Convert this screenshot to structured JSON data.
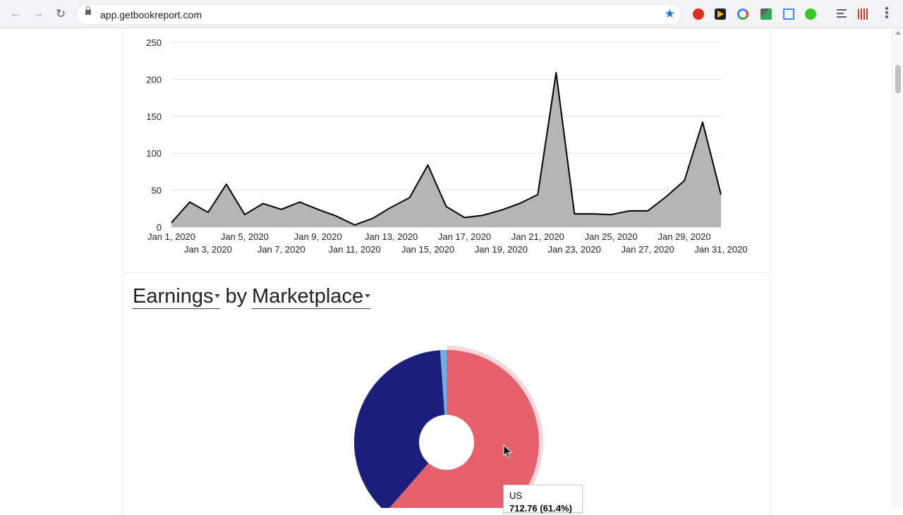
{
  "browser": {
    "url": "app.getbookreport.com",
    "icons": [
      "back-arrow-icon",
      "forward-arrow-icon",
      "reload-icon",
      "lock-icon",
      "bookmark-star-icon",
      "extension-icon",
      "reading-list-icon",
      "kebab-menu-icon"
    ]
  },
  "chart_data": [
    {
      "type": "area",
      "title": "",
      "xlabel": "",
      "ylabel": "",
      "ylim": [
        0,
        250
      ],
      "yticks": [
        0,
        50,
        100,
        150,
        200,
        250
      ],
      "grid": true,
      "colors": {
        "fill": "#b5b5b5",
        "line": "#000000",
        "grid": "#e0e0e0"
      },
      "x": [
        "Jan 1, 2020",
        "Jan 2, 2020",
        "Jan 3, 2020",
        "Jan 4, 2020",
        "Jan 5, 2020",
        "Jan 6, 2020",
        "Jan 7, 2020",
        "Jan 8, 2020",
        "Jan 9, 2020",
        "Jan 10, 2020",
        "Jan 11, 2020",
        "Jan 12, 2020",
        "Jan 13, 2020",
        "Jan 14, 2020",
        "Jan 15, 2020",
        "Jan 16, 2020",
        "Jan 17, 2020",
        "Jan 18, 2020",
        "Jan 19, 2020",
        "Jan 20, 2020",
        "Jan 21, 2020",
        "Jan 22, 2020",
        "Jan 23, 2020",
        "Jan 24, 2020",
        "Jan 25, 2020",
        "Jan 26, 2020",
        "Jan 27, 2020",
        "Jan 28, 2020",
        "Jan 29, 2020",
        "Jan 30, 2020",
        "Jan 31, 2020"
      ],
      "values": [
        6,
        34,
        20,
        58,
        17,
        32,
        24,
        34,
        24,
        15,
        3,
        12,
        27,
        40,
        84,
        28,
        13,
        16,
        23,
        32,
        44,
        209,
        18,
        18,
        17,
        22,
        22,
        41,
        63,
        142,
        44
      ],
      "xtick_labels_row1": [
        "Jan 1, 2020",
        "Jan 5, 2020",
        "Jan 9, 2020",
        "Jan 13, 2020",
        "Jan 17, 2020",
        "Jan 21, 2020",
        "Jan 25, 2020",
        "Jan 29, 2020"
      ],
      "xtick_labels_row2": [
        "Jan 3, 2020",
        "Jan 7, 2020",
        "Jan 11, 2020",
        "Jan 15, 2020",
        "Jan 19, 2020",
        "Jan 23, 2020",
        "Jan 27, 2020",
        "Jan 31, 2020"
      ]
    },
    {
      "type": "pie",
      "donut": true,
      "slices": [
        {
          "label": "US",
          "share": 61.4,
          "color": "#e5606b"
        },
        {
          "label": "",
          "share": 37.5,
          "color": "#1b1f7a"
        },
        {
          "label": "",
          "share": 1.1,
          "color": "#6eaee6"
        }
      ],
      "highlighted_slice": "US"
    }
  ],
  "section": {
    "metric_label": "Earnings",
    "by_label": "by",
    "dimension_label": "Marketplace"
  },
  "tooltip": {
    "label": "US",
    "value": "712.76 (61.4%)"
  }
}
